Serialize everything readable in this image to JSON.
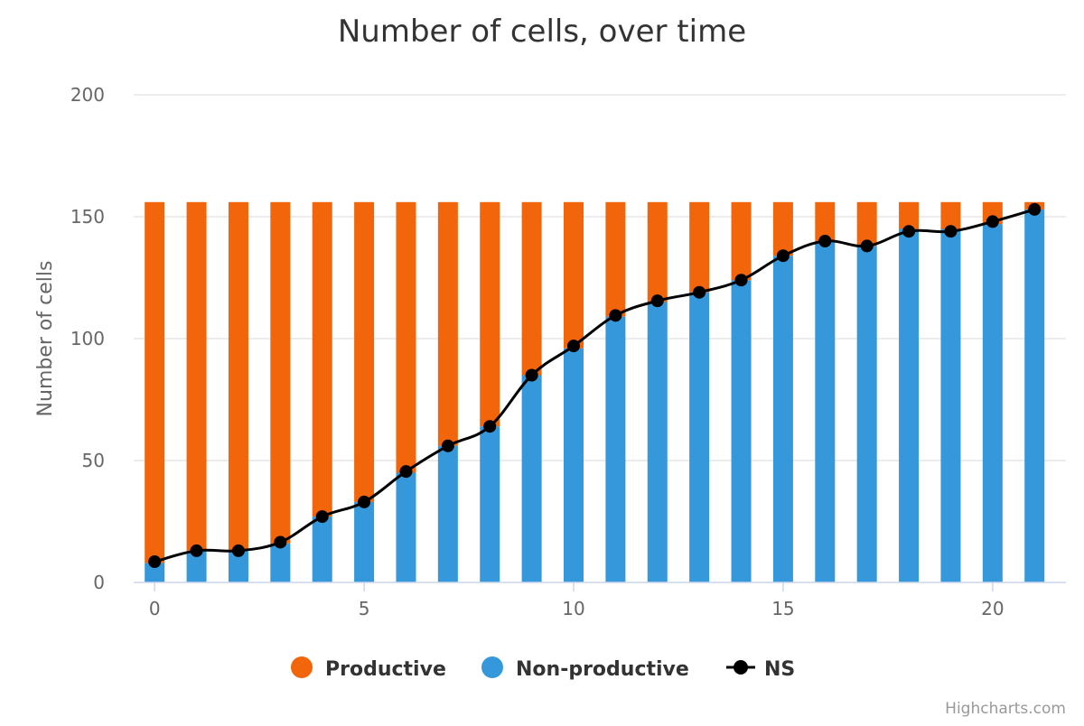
{
  "chart_data": {
    "type": "bar",
    "title": "Number of cells, over time",
    "xlabel": "",
    "ylabel": "Number of cells",
    "x": [
      0,
      1,
      2,
      3,
      4,
      5,
      6,
      7,
      8,
      9,
      10,
      11,
      12,
      13,
      14,
      15,
      16,
      17,
      18,
      19,
      20,
      21
    ],
    "xticks": [
      "0",
      "5",
      "10",
      "15",
      "20"
    ],
    "xtick_values": [
      0,
      5,
      10,
      15,
      20
    ],
    "yticks": [
      "0",
      "50",
      "100",
      "150",
      "200"
    ],
    "ytick_values": [
      0,
      50,
      100,
      150,
      200
    ],
    "xlim": [
      -0.5,
      21.75
    ],
    "ylim": [
      0,
      200
    ],
    "stacked": true,
    "grid": true,
    "legend_position": "bottom-center",
    "series": [
      {
        "name": "Productive",
        "type": "bar",
        "color": "#f2650a",
        "values": [
          148,
          143,
          143,
          140,
          129,
          123,
          111,
          100,
          92,
          71,
          60,
          47,
          41,
          37,
          32,
          22,
          16,
          18,
          11,
          11,
          9,
          3
        ]
      },
      {
        "name": "Non-productive",
        "type": "bar",
        "color": "#3498db",
        "values": [
          8,
          13,
          13,
          16,
          27,
          33,
          45,
          56,
          64,
          85,
          96,
          109,
          115,
          119,
          124,
          134,
          140,
          138,
          145,
          145,
          147,
          153
        ]
      },
      {
        "name": "NS",
        "type": "line",
        "color": "#000000",
        "values": [
          8.5,
          13,
          13,
          16.5,
          27,
          33,
          45.5,
          56,
          64,
          85,
          97,
          109.5,
          115.5,
          119,
          124,
          134,
          140,
          138,
          144,
          144,
          148,
          153
        ]
      }
    ]
  },
  "credit": "Highcharts.com"
}
